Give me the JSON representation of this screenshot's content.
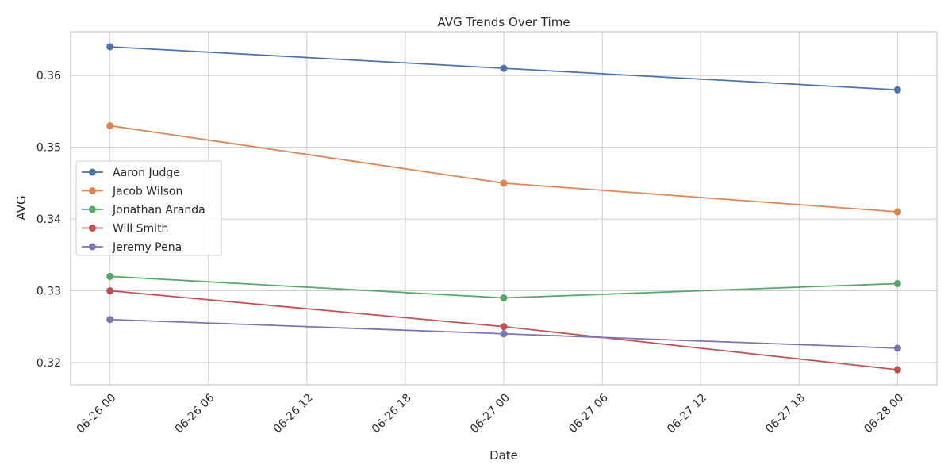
{
  "chart_data": {
    "type": "line",
    "title": "AVG Trends Over Time",
    "xlabel": "Date",
    "ylabel": "AVG",
    "x": [
      "2025-06-26T00:00",
      "2025-06-27T00:00",
      "2025-06-28T00:00"
    ],
    "x_tick_labels": [
      "06-26 00",
      "06-26 06",
      "06-26 12",
      "06-26 18",
      "06-27 00",
      "06-27 06",
      "06-27 12",
      "06-27 18",
      "06-28 00"
    ],
    "y_ticks": [
      "0.32",
      "0.33",
      "0.34",
      "0.35",
      "0.36"
    ],
    "ylim": [
      0.3169,
      0.3661
    ],
    "xlim_hours": [
      -2.4,
      50.4
    ],
    "grid": true,
    "legend_position": "center-left",
    "series": [
      {
        "name": "Aaron Judge",
        "color": "#4c72b0",
        "values": [
          0.364,
          0.361,
          0.358
        ]
      },
      {
        "name": "Jacob Wilson",
        "color": "#dd8452",
        "values": [
          0.353,
          0.345,
          0.341
        ]
      },
      {
        "name": "Jonathan Aranda",
        "color": "#55a868",
        "values": [
          0.332,
          0.329,
          0.331
        ]
      },
      {
        "name": "Will Smith",
        "color": "#c44e52",
        "values": [
          0.33,
          0.325,
          0.319
        ]
      },
      {
        "name": "Jeremy Pena",
        "color": "#8172b3",
        "values": [
          0.326,
          0.324,
          0.322
        ]
      }
    ]
  }
}
